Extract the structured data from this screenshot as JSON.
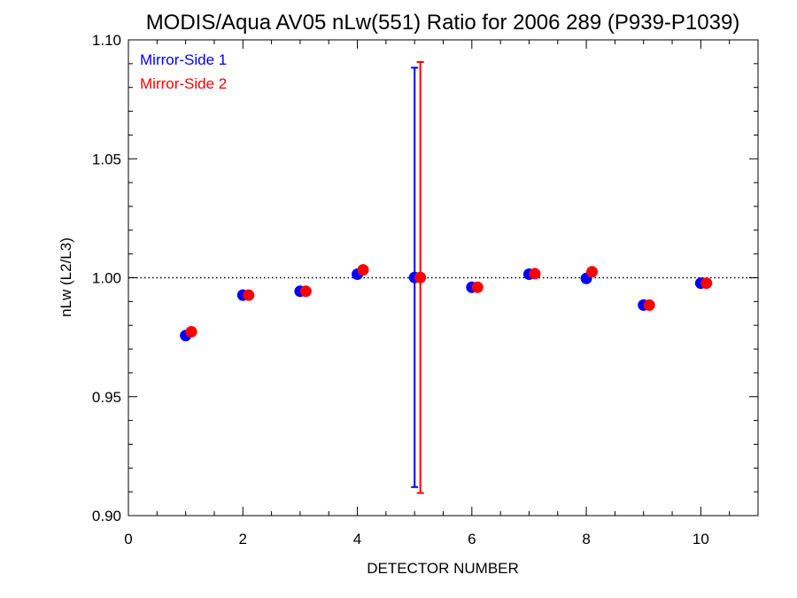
{
  "chart_data": {
    "type": "scatter",
    "title": "MODIS/Aqua AV05 nLw(551) Ratio for 2006 289 (P939-P1039)",
    "xlabel": "DETECTOR NUMBER",
    "ylabel": "nLw (L2/L3)",
    "xlim": [
      0,
      11
    ],
    "ylim": [
      0.9,
      1.1
    ],
    "x_ticks": [
      0,
      2,
      4,
      6,
      8,
      10
    ],
    "x_tick_labels": [
      "0",
      "2",
      "4",
      "6",
      "8",
      "10"
    ],
    "y_ticks": [
      0.9,
      0.95,
      1.0,
      1.05,
      1.1
    ],
    "y_tick_labels": [
      "0.90",
      "0.95",
      "1.00",
      "1.05",
      "1.10"
    ],
    "reference_line": {
      "y": 1.0,
      "style": "dotted"
    },
    "grid": false,
    "legend_position": "top-left",
    "series": [
      {
        "name": "Mirror-Side 1",
        "color": "#0000ff",
        "x": [
          1,
          2,
          3,
          4,
          5,
          6,
          7,
          8,
          9,
          10
        ],
        "y": [
          0.9757,
          0.9927,
          0.9943,
          1.0015,
          1.0001,
          0.996,
          1.0015,
          0.9997,
          0.9885,
          0.9977
        ],
        "error_bar": {
          "x": 5,
          "low": 0.912,
          "high": 1.0883
        }
      },
      {
        "name": "Mirror-Side 2",
        "color": "#ff0000",
        "x": [
          1.1,
          2.1,
          3.1,
          4.1,
          5.1,
          6.1,
          7.1,
          8.1,
          9.1,
          10.1
        ],
        "y": [
          0.9773,
          0.9927,
          0.9943,
          1.0033,
          1.0001,
          0.996,
          1.0017,
          1.0025,
          0.9885,
          0.9977
        ],
        "error_bar": {
          "x": 5.1,
          "low": 0.9095,
          "high": 1.0907
        }
      }
    ]
  }
}
